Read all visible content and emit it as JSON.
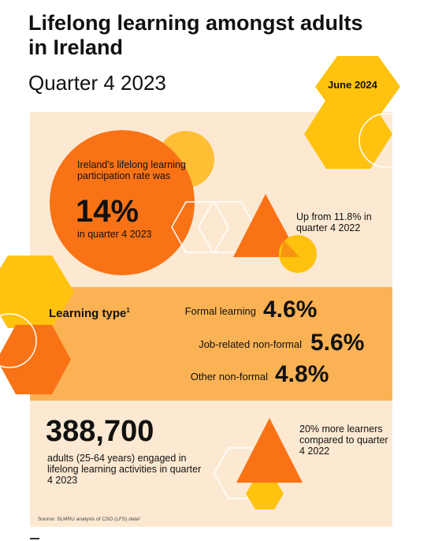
{
  "header": {
    "title": "Lifelong learning amongst adults in Ireland",
    "subtitle": "Quarter 4 2023",
    "date": "June 2024"
  },
  "participation": {
    "intro": "Ireland's lifelong learning participation rate was",
    "rate": "14%",
    "period": "in quarter 4 2023",
    "change": "Up from 11.8% in quarter 4 2022"
  },
  "learning_type": {
    "heading": "Learning type",
    "footnote": "1",
    "rows": [
      {
        "label": "Formal learning",
        "value": "4.6%"
      },
      {
        "label": "Job-related non-formal",
        "value": "5.6%"
      },
      {
        "label": "Other non-formal",
        "value": "4.8%"
      }
    ]
  },
  "learners": {
    "count": "388,700",
    "description": "adults (25-64 years) engaged in lifelong learning activities in quarter 4 2023",
    "comparison": "20% more learners compared to quarter 4 2022"
  },
  "source": "Source: SLMRU analysis of CSO (LFS) data²",
  "colors": {
    "orange": "#f97316",
    "amber": "#fbbf24",
    "yellow": "#ffc20e",
    "panel_light": "#fde9d2",
    "panel_mid": "#fbb254"
  }
}
